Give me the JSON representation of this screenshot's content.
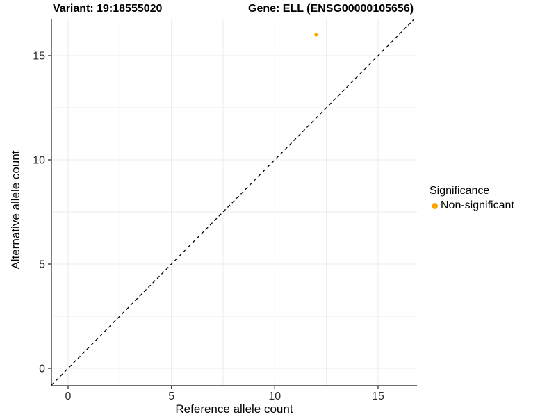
{
  "chart_data": {
    "type": "scatter",
    "title_variant": "Variant: 19:18555020",
    "title_gene": "Gene: ELL (ENSG00000105656)",
    "xlabel": "Reference allele count",
    "ylabel": "Alternative allele count",
    "xticks": [
      0,
      5,
      10,
      15
    ],
    "yticks": [
      0,
      5,
      10,
      15
    ],
    "xlim": [
      -0.81,
      16.9
    ],
    "ylim": [
      -0.83,
      16.73
    ],
    "grid": {
      "on": true,
      "minor_step": 2.5,
      "color": "#EBEBEB"
    },
    "points": [
      {
        "x": 12,
        "y": 16,
        "series": "Non-significant"
      }
    ],
    "identity_line": {
      "equation": "y = x",
      "style": "dashed",
      "color": "#000000"
    },
    "legend": {
      "position": "right",
      "title": "Significance",
      "entries": [
        {
          "label": "Non-significant",
          "color": "#FFA500"
        }
      ]
    },
    "colors": {
      "non_significant": "#FFA500",
      "axis_line": "#3f3f3f",
      "tick_label": "#2b2b2b",
      "gridline": "#EBEBEB",
      "background": "#FFFFFF"
    }
  }
}
